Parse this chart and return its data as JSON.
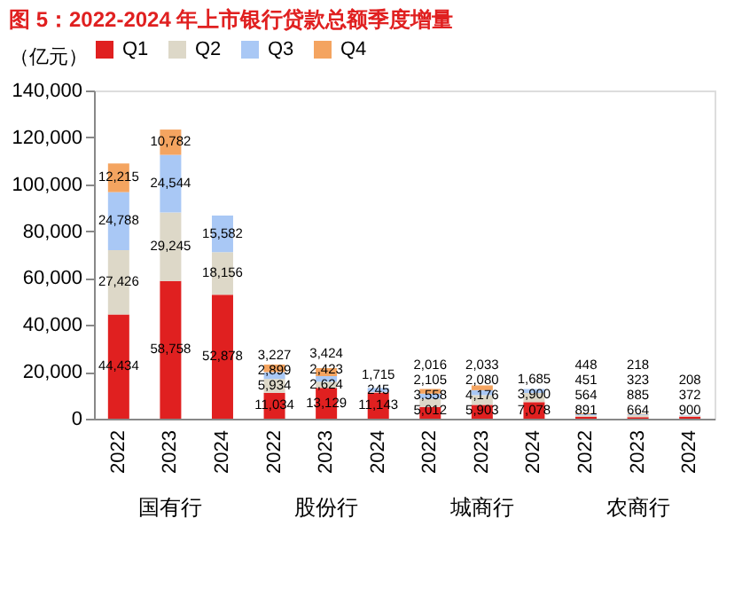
{
  "chart_data": {
    "type": "bar",
    "stacked": true,
    "title": "图 5：2022-2024 年上市银行贷款总额季度增量",
    "ylabel": "（亿元）",
    "categories": [
      "2022",
      "2023",
      "2024",
      "2022",
      "2023",
      "2024",
      "2022",
      "2023",
      "2024",
      "2022",
      "2023",
      "2024"
    ],
    "annotations": [
      "国有行",
      "股份行",
      "城商行",
      "农商行"
    ],
    "series": [
      {
        "name": "Q1",
        "color": "#e02020",
        "values": [
          44434,
          58758,
          52878,
          11034,
          13129,
          11143,
          5012,
          5903,
          7078,
          891,
          664,
          900
        ],
        "value_labels": [
          "44,434",
          "58,758",
          "52,878",
          "11,034",
          "13,129",
          "11,143",
          "5,012",
          "5,903",
          "7,078",
          "891",
          "664",
          "900"
        ]
      },
      {
        "name": "Q2",
        "color": "#ddd8c8",
        "values": [
          27426,
          29245,
          18156,
          5934,
          2624,
          245,
          3558,
          4176,
          3900,
          564,
          885,
          372
        ],
        "value_labels": [
          "27,426",
          "29,245",
          "18,156",
          "5,934",
          "2,624",
          "245",
          "3,558",
          "4,176",
          "3,900",
          "564",
          "885",
          "372"
        ]
      },
      {
        "name": "Q3",
        "color": "#a9c8f5",
        "values": [
          24788,
          24544,
          15582,
          2899,
          2423,
          1715,
          2105,
          2080,
          1685,
          451,
          323,
          208
        ],
        "value_labels": [
          "24,788",
          "24,544",
          "15,582",
          "2,899",
          "2,423",
          "1,715",
          "2,105",
          "2,080",
          "1,685",
          "451",
          "323",
          "208"
        ]
      },
      {
        "name": "Q4",
        "color": "#f4a460",
        "values": [
          12215,
          10782,
          null,
          3227,
          3424,
          null,
          2016,
          2033,
          null,
          448,
          218,
          null
        ],
        "value_labels": [
          "12,215",
          "10,782",
          null,
          "3,227",
          "3,424",
          null,
          "2,016",
          "2,033",
          null,
          "448",
          "218",
          null
        ]
      }
    ],
    "ylim": [
      0,
      140000
    ],
    "yticks": [
      0,
      {
        "value": 20000,
        "label": "20,000"
      },
      {
        "value": 40000,
        "label": "40,000"
      },
      {
        "value": 60000,
        "label": "60,000"
      },
      {
        "value": 80000,
        "label": "80,000"
      },
      {
        "value": 100000,
        "label": "100,000"
      },
      {
        "value": 120000,
        "label": "120,000"
      },
      {
        "value": 140000,
        "label": "140,000"
      }
    ],
    "grid": false,
    "legend": "top"
  }
}
